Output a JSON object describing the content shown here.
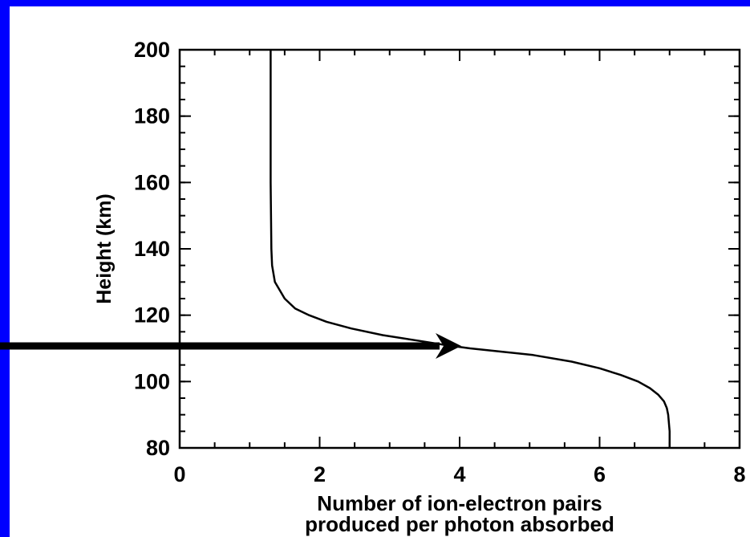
{
  "chart_data": {
    "type": "line",
    "ylabel": "Height (km)",
    "xlabel": [
      "Number of ion-electron pairs",
      "produced per photon absorbed"
    ],
    "x": [
      1.3,
      1.3,
      1.3,
      1.31,
      1.32,
      1.36,
      1.5,
      1.65,
      1.85,
      2.1,
      2.45,
      2.9,
      3.5,
      3.8,
      4.15,
      4.6,
      5.05,
      5.6,
      6.0,
      6.3,
      6.55,
      6.72,
      6.84,
      6.92,
      6.96,
      6.98,
      7.0,
      7.0
    ],
    "values": [
      200,
      180,
      160,
      140,
      135,
      130,
      125,
      122,
      120,
      118,
      116,
      114,
      112,
      111,
      110,
      109,
      108,
      106,
      104,
      102,
      100,
      98,
      96,
      94,
      92,
      90,
      85,
      80
    ],
    "color": "#000000",
    "xlim": [
      0,
      8
    ],
    "xticks": [
      0,
      2,
      4,
      6,
      8
    ],
    "xminor": 0.5,
    "ylim": [
      80,
      200
    ],
    "yticks": [
      80,
      100,
      120,
      140,
      160,
      180,
      200
    ],
    "yminor": 5
  }
}
